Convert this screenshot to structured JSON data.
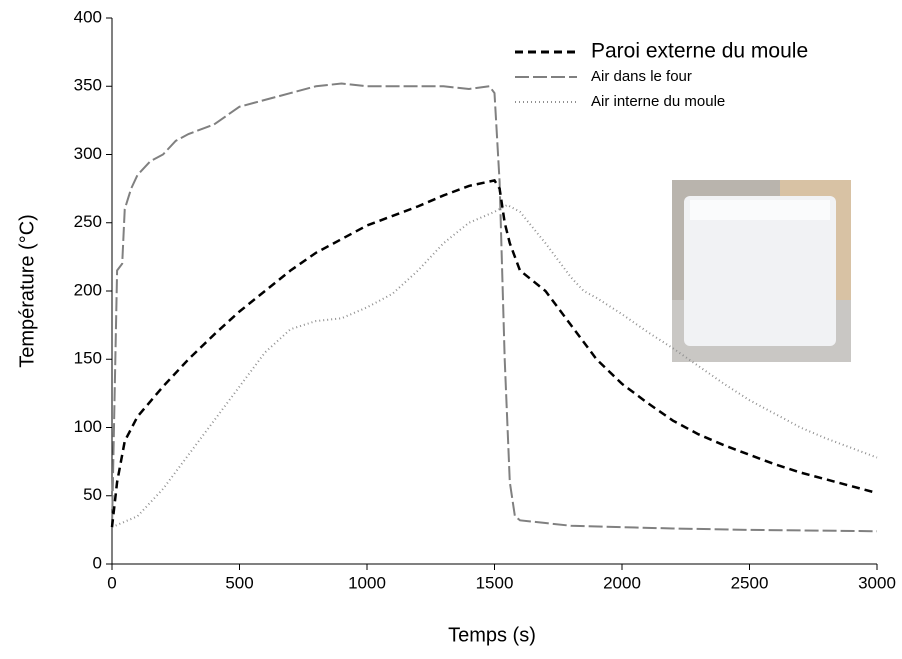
{
  "chart_data": {
    "type": "line",
    "x_label": "Temps (s)",
    "y_label": "Température (°C)",
    "xlim": [
      0,
      3000
    ],
    "xticks": [
      0,
      500,
      1000,
      1500,
      2000,
      2500,
      3000
    ],
    "ylim": [
      0,
      400
    ],
    "yticks": [
      0,
      50,
      100,
      150,
      200,
      250,
      300,
      350,
      400
    ],
    "grid": false,
    "legend": "upper right",
    "series": [
      {
        "name": "Paroi externe du moule",
        "color": "#000000",
        "dash": "8,5",
        "x": [
          0,
          20,
          50,
          100,
          200,
          300,
          400,
          500,
          600,
          700,
          800,
          900,
          1000,
          1100,
          1200,
          1300,
          1400,
          1500,
          1520,
          1540,
          1560,
          1600,
          1700,
          1800,
          1900,
          2000,
          2100,
          2200,
          2300,
          2400,
          2500,
          2600,
          2700,
          2800,
          2900,
          3000
        ],
        "values": [
          27,
          60,
          90,
          108,
          130,
          150,
          168,
          185,
          200,
          215,
          228,
          238,
          248,
          255,
          262,
          270,
          277,
          281,
          275,
          250,
          235,
          215,
          200,
          175,
          150,
          132,
          118,
          105,
          95,
          87,
          80,
          73,
          67,
          62,
          57,
          52
        ]
      },
      {
        "name": "Air dans le four",
        "color": "#808080",
        "dash": "14,4",
        "x": [
          0,
          20,
          40,
          50,
          75,
          100,
          150,
          200,
          250,
          300,
          400,
          500,
          600,
          700,
          800,
          900,
          1000,
          1100,
          1200,
          1300,
          1400,
          1480,
          1500,
          1520,
          1540,
          1560,
          1580,
          1600,
          1700,
          1800,
          2000,
          2200,
          2500,
          3000
        ],
        "values": [
          27,
          215,
          220,
          260,
          275,
          285,
          295,
          300,
          310,
          315,
          322,
          335,
          340,
          345,
          350,
          352,
          350,
          350,
          350,
          350,
          348,
          350,
          345,
          280,
          150,
          60,
          35,
          32,
          30,
          28,
          27,
          26,
          25,
          24
        ]
      },
      {
        "name": "Air interne du moule",
        "color": "#909090",
        "dash": "1,3",
        "x": [
          0,
          100,
          200,
          300,
          400,
          500,
          600,
          700,
          800,
          900,
          1000,
          1100,
          1200,
          1300,
          1400,
          1500,
          1550,
          1600,
          1700,
          1800,
          1850,
          1900,
          2000,
          2100,
          2200,
          2300,
          2400,
          2500,
          2600,
          2700,
          2800,
          2900,
          3000
        ],
        "values": [
          27,
          35,
          55,
          80,
          105,
          130,
          155,
          172,
          178,
          180,
          188,
          198,
          215,
          235,
          250,
          258,
          263,
          258,
          235,
          210,
          200,
          195,
          183,
          170,
          158,
          145,
          132,
          120,
          110,
          100,
          92,
          85,
          78
        ]
      }
    ]
  }
}
